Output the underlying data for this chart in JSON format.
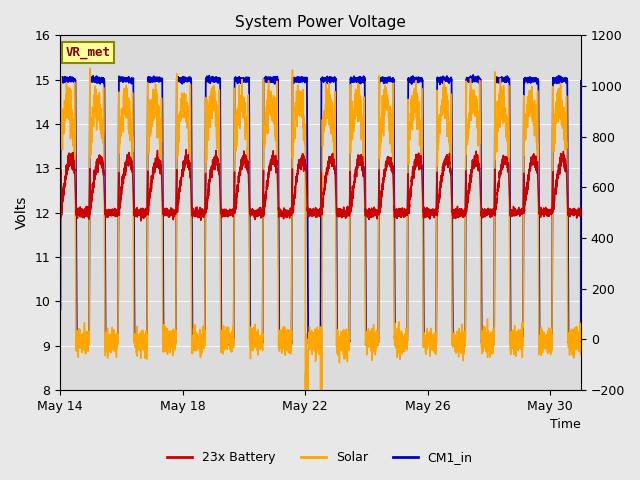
{
  "title": "System Power Voltage",
  "xlabel": "Time",
  "ylabel": "Volts",
  "ylim_left": [
    8.0,
    16.0
  ],
  "ylim_right": [
    -200,
    1200
  ],
  "yticks_left": [
    8.0,
    9.0,
    10.0,
    11.0,
    12.0,
    13.0,
    14.0,
    15.0,
    16.0
  ],
  "yticks_right": [
    -200,
    0,
    200,
    400,
    600,
    800,
    1000,
    1200
  ],
  "xtick_positions": [
    0,
    4,
    8,
    12,
    16
  ],
  "xtick_labels": [
    "May 14",
    "May 18",
    "May 22",
    "May 26",
    "May 30"
  ],
  "annotation_text": "VR_met",
  "annotation_box_color": "#ffff99",
  "annotation_text_color": "#8b0000",
  "fig_bg_color": "#e8e8e8",
  "plot_bg_color": "#dcdcdc",
  "legend_labels": [
    "23x Battery",
    "Solar",
    "CM1_in"
  ],
  "legend_colors": [
    "#cc0000",
    "#ffa500",
    "#0000cc"
  ],
  "line_colors": {
    "battery": "#cc0000",
    "solar": "#ffa500",
    "cm1": "#0000cc"
  },
  "total_days": 17,
  "n_cycles": 18
}
